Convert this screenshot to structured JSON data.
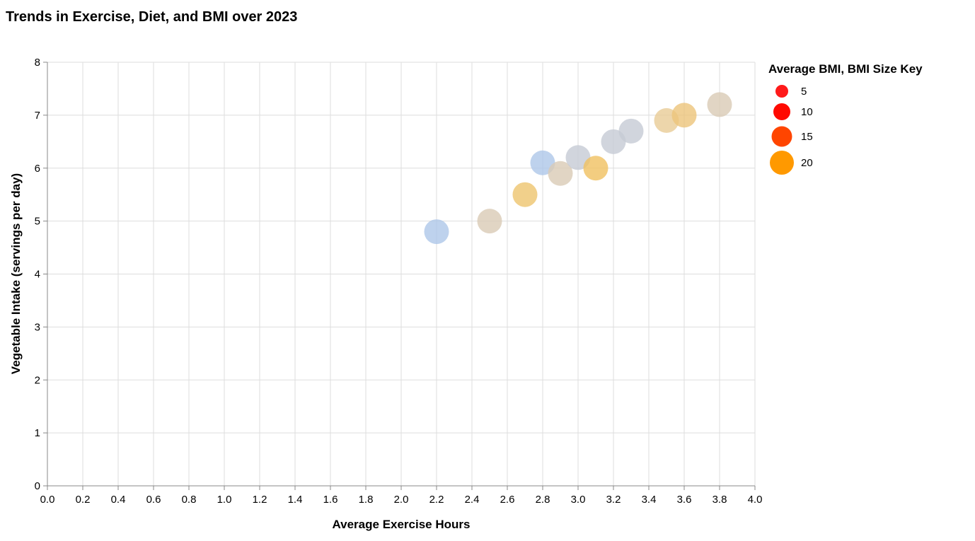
{
  "chart_data": {
    "type": "scatter",
    "title": "Trends in Exercise, Diet, and BMI over 2023",
    "xlabel": "Average Exercise Hours",
    "ylabel": "Vegetable Intake (servings per day)",
    "xlim": [
      0,
      4
    ],
    "ylim": [
      0,
      8
    ],
    "x_ticks": [
      "0.0",
      "0.2",
      "0.4",
      "0.6",
      "0.8",
      "1.0",
      "1.2",
      "1.4",
      "1.6",
      "1.8",
      "2.0",
      "2.2",
      "2.4",
      "2.6",
      "2.8",
      "3.0",
      "3.2",
      "3.4",
      "3.6",
      "3.8",
      "4.0"
    ],
    "y_ticks": [
      "0",
      "1",
      "2",
      "3",
      "4",
      "5",
      "6",
      "7",
      "8"
    ],
    "grid": true,
    "legend": {
      "title": "Average BMI, BMI Size Key",
      "placement": "right",
      "entries": [
        {
          "label": "5",
          "value": 5,
          "color": "#ff1a1a"
        },
        {
          "label": "10",
          "value": 10,
          "color": "#ff0a00"
        },
        {
          "label": "15",
          "value": 15,
          "color": "#ff4500"
        },
        {
          "label": "20",
          "value": 20,
          "color": "#ff9900"
        }
      ]
    },
    "points": [
      {
        "x": 2.2,
        "y": 4.8,
        "color": "#aec7e8"
      },
      {
        "x": 2.5,
        "y": 5.0,
        "color": "#d9cbb5"
      },
      {
        "x": 2.7,
        "y": 5.5,
        "color": "#edc46e"
      },
      {
        "x": 2.8,
        "y": 6.1,
        "color": "#aec7e8"
      },
      {
        "x": 2.9,
        "y": 5.9,
        "color": "#d9cbb5"
      },
      {
        "x": 3.0,
        "y": 6.2,
        "color": "#c5cad4"
      },
      {
        "x": 3.1,
        "y": 6.0,
        "color": "#f0c060"
      },
      {
        "x": 3.2,
        "y": 6.5,
        "color": "#c5cad4"
      },
      {
        "x": 3.3,
        "y": 6.7,
        "color": "#c5cad4"
      },
      {
        "x": 3.5,
        "y": 6.9,
        "color": "#e8cc96"
      },
      {
        "x": 3.6,
        "y": 7.0,
        "color": "#ecc47a"
      },
      {
        "x": 3.8,
        "y": 7.2,
        "color": "#d9cbb5"
      }
    ]
  }
}
